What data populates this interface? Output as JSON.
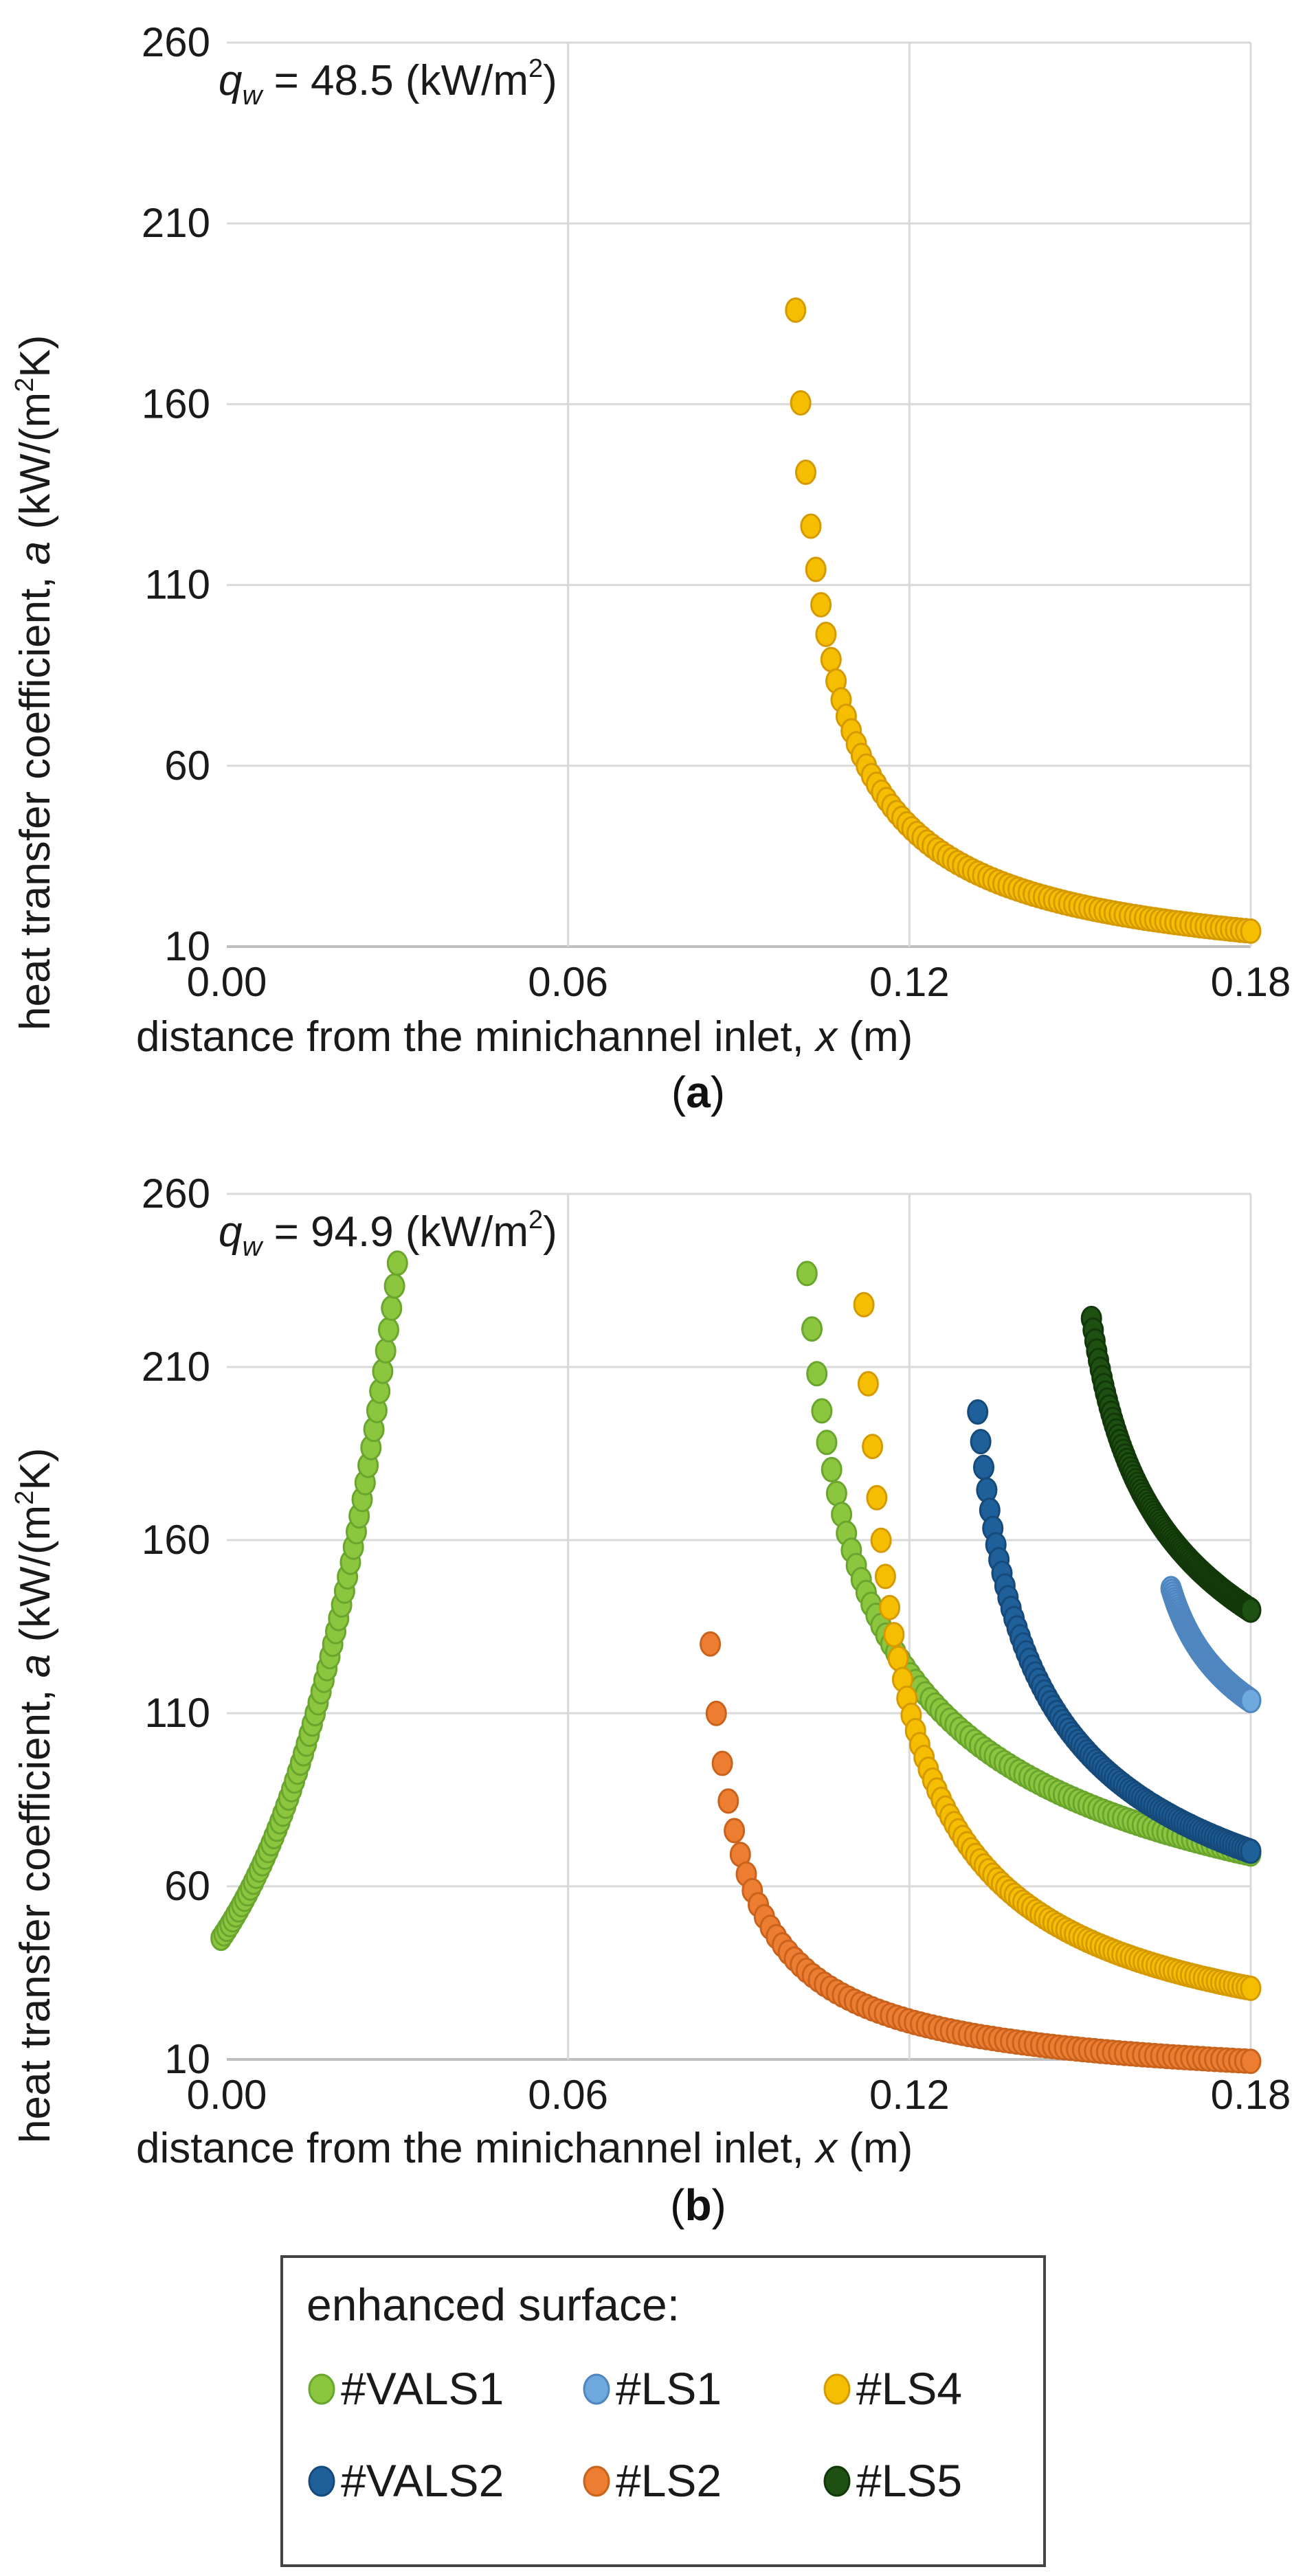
{
  "chart_data": [
    {
      "id": "a",
      "type": "scatter",
      "panel_label": "a",
      "title_symbol": "q",
      "title_subscript": "w",
      "title_text": " = 48.5 (kW/m",
      "title_sup": "2",
      "title_close": ")",
      "xlabel_text": "distance from the minichannel inlet, ",
      "xlabel_symbol": "x",
      "xlabel_unit": " (m)",
      "ylabel_text": "heat transfer coefficient, ",
      "ylabel_symbol": "a",
      "ylabel_unit_a": " (kW/(m",
      "ylabel_sup": "2",
      "ylabel_unit_b": "K)",
      "xlim": [
        0,
        0.18
      ],
      "ylim": [
        10,
        260
      ],
      "x_ticks": [
        "0.00",
        "0.06",
        "0.12",
        "0.18"
      ],
      "y_ticks": [
        "10",
        "60",
        "110",
        "160",
        "210",
        "260"
      ],
      "grid": true,
      "series": [
        {
          "name": "#LS4",
          "x0": 0.1,
          "y0": 186,
          "k": 1.45,
          "xend": 0.18
        }
      ]
    },
    {
      "id": "b",
      "type": "scatter",
      "panel_label": "b",
      "title_symbol": "q",
      "title_subscript": "w",
      "title_text": " = 94.9 (kW/m",
      "title_sup": "2",
      "title_close": ")",
      "xlabel_text": "distance from the minichannel inlet, ",
      "xlabel_symbol": "x",
      "xlabel_unit": " (m)",
      "ylabel_text": "heat transfer coefficient, ",
      "ylabel_symbol": "a",
      "ylabel_unit_a": " (kW/(m",
      "ylabel_sup": "2",
      "ylabel_unit_b": "K)",
      "xlim": [
        0,
        0.18
      ],
      "ylim": [
        10,
        260
      ],
      "x_ticks": [
        "0.00",
        "0.06",
        "0.12",
        "0.18"
      ],
      "y_ticks": [
        "10",
        "60",
        "110",
        "160",
        "210",
        "260"
      ],
      "grid": true,
      "series": [
        {
          "name": "#VALS1",
          "rising": true,
          "xstart": -0.001,
          "ystart": 45,
          "xpeak": 0.03,
          "ypeak": 240
        },
        {
          "name": "#VALS1",
          "x0": 0.102,
          "y0": 237,
          "k": 0.7,
          "xend": 0.18
        },
        {
          "name": "#LS4",
          "x0": 0.112,
          "y0": 228,
          "k": 1.2,
          "xend": 0.18
        },
        {
          "name": "#VALS2",
          "x0": 0.132,
          "y0": 197,
          "k": 0.7,
          "xend": 0.18
        },
        {
          "name": "#LS5",
          "x0": 0.152,
          "y0": 224,
          "k": 0.4,
          "xend": 0.18
        },
        {
          "name": "#LS1",
          "x0": 0.166,
          "y0": 146,
          "k": 0.3,
          "xend": 0.18
        },
        {
          "name": "#LS2",
          "x0": 0.085,
          "y0": 130,
          "k": 1.4,
          "xend": 0.18
        }
      ]
    }
  ],
  "legend": {
    "title": "enhanced surface:",
    "items": [
      {
        "name": "#VALS1",
        "color": "#8cc63e"
      },
      {
        "name": "#LS1",
        "color": "#6fa8dc"
      },
      {
        "name": "#LS4",
        "color": "#f6be00"
      },
      {
        "name": "#VALS2",
        "color": "#1f5f9a"
      },
      {
        "name": "#LS2",
        "color": "#ed7d31"
      },
      {
        "name": "#LS5",
        "color": "#1e5012"
      }
    ]
  },
  "colors": {
    "#VALS1": {
      "fill": "#8cc63e",
      "stroke": "#6aa52e"
    },
    "#LS1": {
      "fill": "#6fa8dc",
      "stroke": "#4f86c0"
    },
    "#LS4": {
      "fill": "#f6be00",
      "stroke": "#d49a00"
    },
    "#VALS2": {
      "fill": "#1f5f9a",
      "stroke": "#164a7a"
    },
    "#LS2": {
      "fill": "#ed7d31",
      "stroke": "#c9621d"
    },
    "#LS5": {
      "fill": "#1e5012",
      "stroke": "#12380a"
    },
    "grid": "#d9d9d9",
    "axis": "#bfbfbf"
  }
}
